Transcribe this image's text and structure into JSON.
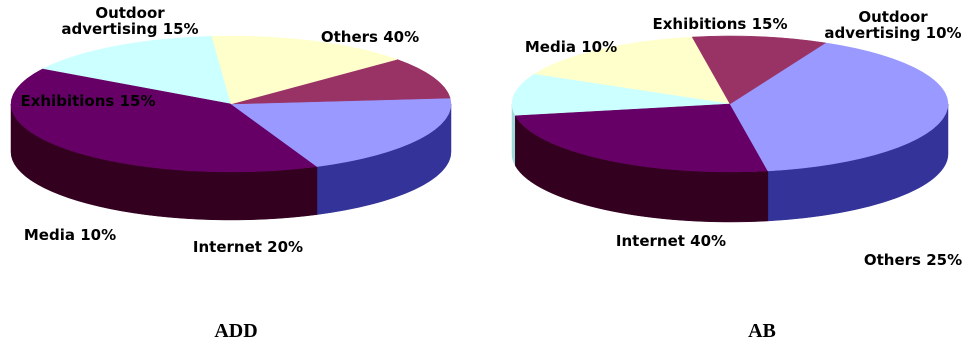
{
  "chart_data": [
    {
      "type": "pie",
      "style": "3d",
      "title": "ADD",
      "slices": [
        {
          "label": "Outdoor advertising",
          "value": 15,
          "display": [
            "Outdoor",
            "advertising 15%"
          ],
          "color": "#CCFFFF",
          "side_color": "#9FD9D9"
        },
        {
          "label": "Others",
          "value": 40,
          "display": [
            "Others 40%"
          ],
          "color": "#660066",
          "side_color": "#33001F"
        },
        {
          "label": "Internet",
          "value": 20,
          "display": [
            "Internet 20%"
          ],
          "color": "#9999FF",
          "side_color": "#333399"
        },
        {
          "label": "Media",
          "value": 10,
          "display": [
            "Media 10%"
          ],
          "color": "#993366",
          "side_color": "#333333"
        },
        {
          "label": "Exhibitions",
          "value": 15,
          "display": [
            "Exhibitions 15%"
          ],
          "color": "#FFFFCC",
          "side_color": "#808080"
        }
      ]
    },
    {
      "type": "pie",
      "style": "3d",
      "title": "AB",
      "slices": [
        {
          "label": "Exhibitions",
          "value": 15,
          "display": [
            "Exhibitions 15%"
          ],
          "color": "#FFFFCC",
          "side_color": "#B3B38F"
        },
        {
          "label": "Outdoor advertising",
          "value": 10,
          "display": [
            "Outdoor",
            "advertising 10%"
          ],
          "color": "#CCFFFF",
          "side_color": "#9FD9D9"
        },
        {
          "label": "Others",
          "value": 25,
          "display": [
            "Others 25%"
          ],
          "color": "#660066",
          "side_color": "#33001F"
        },
        {
          "label": "Internet",
          "value": 40,
          "display": [
            "Internet 40%"
          ],
          "color": "#9999FF",
          "side_color": "#333399"
        },
        {
          "label": "Media",
          "value": 10,
          "display": [
            "Media 10%"
          ],
          "color": "#993366",
          "side_color": "#4D1A33"
        }
      ]
    }
  ]
}
